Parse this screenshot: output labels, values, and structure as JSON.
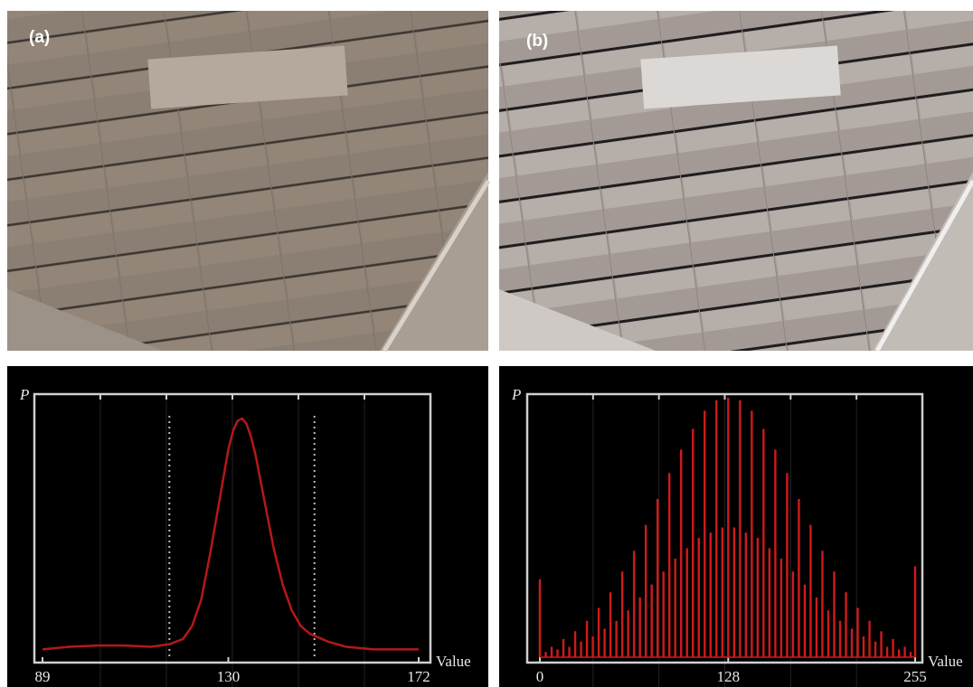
{
  "panels": [
    {
      "label": "(a)"
    },
    {
      "label": "(b)"
    }
  ],
  "chart_data": [
    {
      "type": "line",
      "y_label": "P",
      "x_label": "Value",
      "color": "#b51818",
      "xlim": [
        89,
        172
      ],
      "xticks": [
        89,
        130,
        172
      ],
      "ylim": [
        0,
        100
      ],
      "vlines": [
        117,
        149
      ],
      "x": [
        89,
        95,
        101,
        107,
        113,
        117,
        120,
        122,
        124,
        126,
        128,
        130,
        131,
        132,
        133,
        134,
        135,
        136,
        138,
        140,
        142,
        144,
        146,
        148,
        152,
        156,
        162,
        168,
        172
      ],
      "values": [
        3,
        4,
        4.5,
        4.5,
        4,
        5,
        7,
        12,
        22,
        40,
        60,
        80,
        87,
        91,
        92,
        90,
        85,
        78,
        60,
        42,
        28,
        18,
        12,
        9,
        6,
        4,
        3,
        3,
        3
      ]
    },
    {
      "type": "bar",
      "y_label": "P",
      "x_label": "Value",
      "color": "#d01a1a",
      "xlim": [
        0,
        255
      ],
      "xticks": [
        0,
        128,
        255
      ],
      "ylim": [
        0,
        100
      ],
      "x": [
        0,
        4,
        8,
        12,
        16,
        20,
        24,
        28,
        32,
        36,
        40,
        44,
        48,
        52,
        56,
        60,
        64,
        68,
        72,
        76,
        80,
        84,
        88,
        92,
        96,
        100,
        104,
        108,
        112,
        116,
        120,
        124,
        128,
        132,
        136,
        140,
        144,
        148,
        152,
        156,
        160,
        164,
        168,
        172,
        176,
        180,
        184,
        188,
        192,
        196,
        200,
        204,
        208,
        212,
        216,
        220,
        224,
        228,
        232,
        236,
        240,
        244,
        248,
        252,
        255
      ],
      "values": [
        30,
        2,
        4,
        3,
        7,
        4,
        10,
        6,
        14,
        8,
        19,
        11,
        25,
        14,
        33,
        18,
        41,
        23,
        51,
        28,
        61,
        33,
        71,
        38,
        80,
        42,
        88,
        46,
        95,
        48,
        99,
        50,
        100,
        50,
        99,
        48,
        95,
        46,
        88,
        42,
        80,
        38,
        71,
        33,
        61,
        28,
        51,
        23,
        41,
        18,
        33,
        14,
        25,
        11,
        19,
        8,
        14,
        6,
        10,
        4,
        7,
        3,
        4,
        2,
        35
      ]
    }
  ]
}
